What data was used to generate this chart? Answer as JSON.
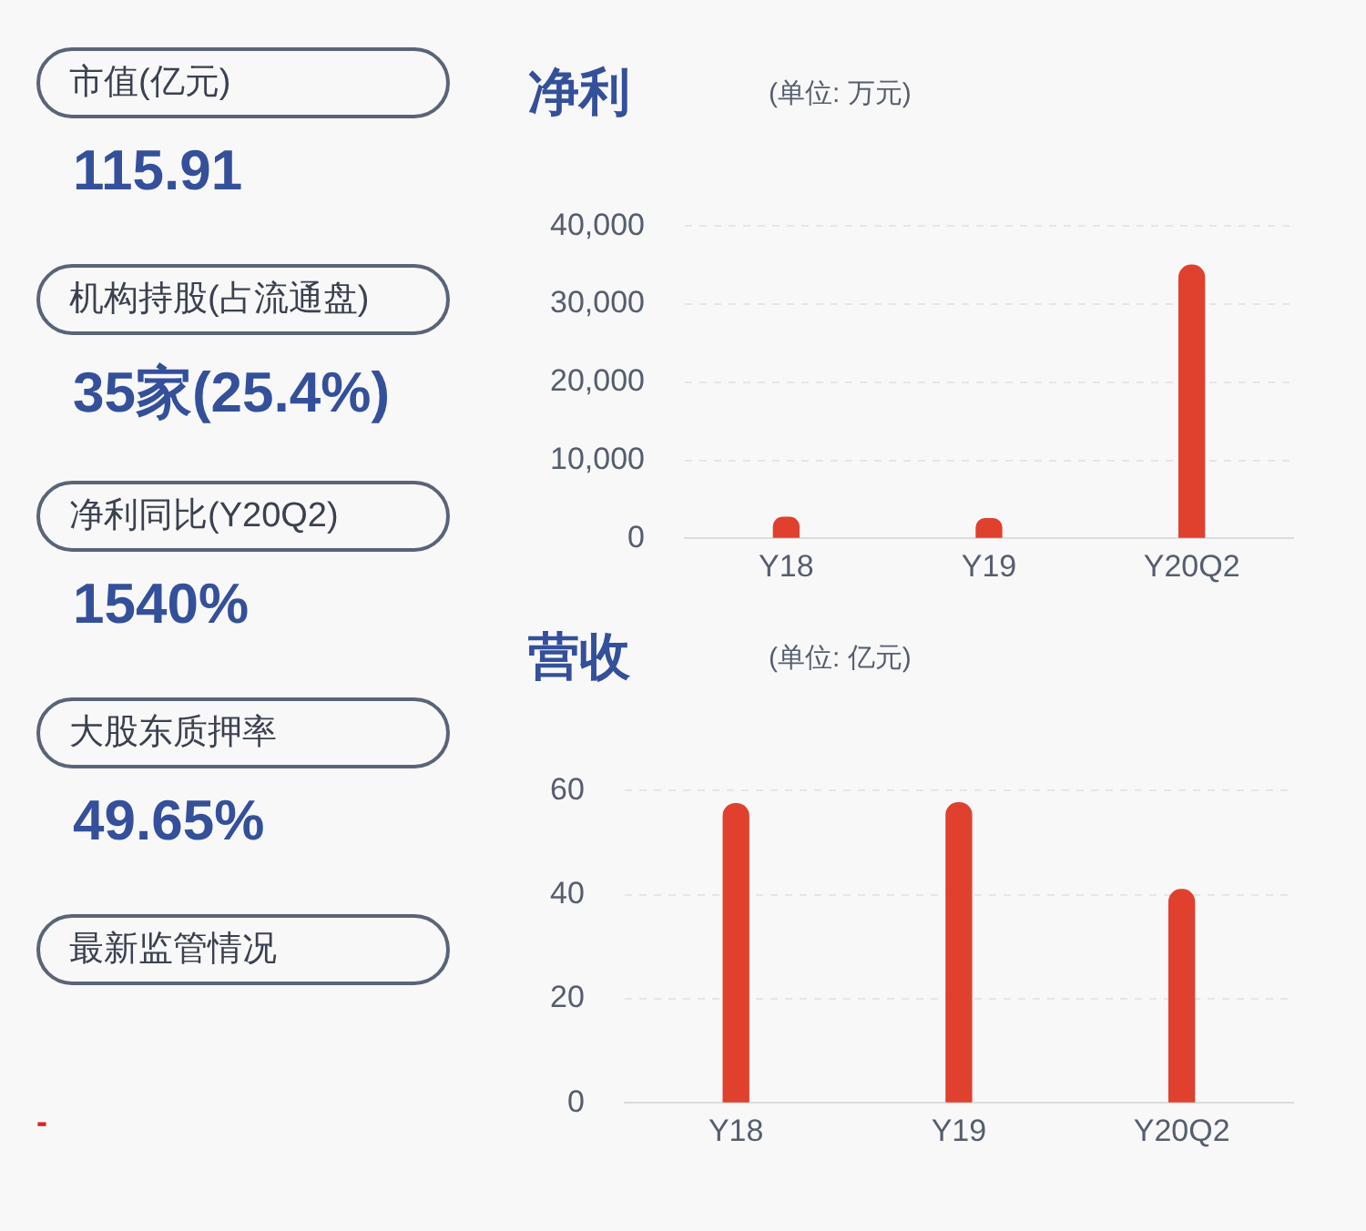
{
  "chart_data": [
    {
      "type": "other",
      "annotations": [
        "市值(亿元)",
        "115.91",
        "机构持股(占流通盘)",
        "35家(25.4%)",
        "净利同比(Y20Q2)",
        "1540%",
        "大股东质押率",
        "49.65%",
        "最新监管情况",
        "-"
      ]
    },
    {
      "type": "bar",
      "title": "净利",
      "subtitle": "(单位: 万元)",
      "categories": [
        "Y18",
        "Y19",
        "Y20Q2"
      ],
      "values": [
        2700,
        2500,
        35000
      ],
      "color": "#e0402e",
      "ylim": [
        0,
        40000
      ],
      "yticks": [
        0,
        {
          "value": 10000,
          "label": "10,000"
        },
        {
          "value": 20000,
          "label": "20,000"
        },
        {
          "value": 30000,
          "label": "30,000"
        },
        {
          "value": 40000,
          "label": "40,000"
        }
      ],
      "grid": "y"
    },
    {
      "type": "bar",
      "title": "营收",
      "subtitle": "(单位: 亿元)",
      "categories": [
        "Y18",
        "Y19",
        "Y20Q2"
      ],
      "values": [
        57.5,
        57.7,
        41
      ],
      "color": "#e0402e",
      "ylim": [
        0,
        60
      ],
      "yticks": [
        0,
        20,
        40,
        60
      ],
      "grid": "y"
    }
  ]
}
